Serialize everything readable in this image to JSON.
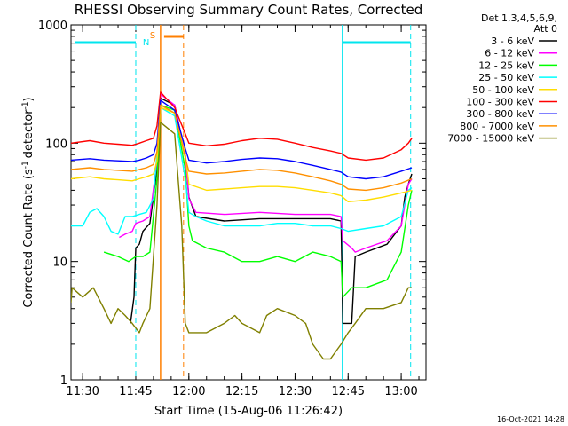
{
  "chart_data": {
    "type": "line",
    "title": "RHESSI Observing Summary Count Rates, Corrected",
    "xlabel": "Start Time (15-Aug-06 11:26:42)",
    "ylabel": "Corrected Count Rate (s",
    "ylabel_unit": "detector",
    "ylabel_sup_a": "-1",
    "ylabel_sup_b": "-1",
    "ylabel_close": ")",
    "yscale": "log",
    "ylim": [
      1,
      1000
    ],
    "xlim": [
      "11:26:42",
      "13:07:00"
    ],
    "x_ticks": [
      "11:30",
      "11:45",
      "12:00",
      "12:15",
      "12:30",
      "12:45",
      "13:00"
    ],
    "y_ticks": [
      "1",
      "10",
      "100",
      "1000"
    ],
    "legend_header": [
      "Det 1,3,4,5,6,9,",
      "Att 0"
    ],
    "legend_position": "right",
    "footer": "16-Oct-2021 14:28",
    "markers": {
      "saa_lines": [
        "11:45:00",
        "13:02:40"
      ],
      "night_line": "12:43:20",
      "flare_line": "11:52:00",
      "flare_end_dashed": "11:58:30",
      "labels": {
        "S": "S",
        "N": "N"
      },
      "colors": {
        "cyan": "#00e5ee",
        "orange": "#ff7f00"
      }
    },
    "series": [
      {
        "name": "3 - 6 keV",
        "color": "#000000",
        "points": [
          [
            "11:43:30",
            3
          ],
          [
            "11:44:30",
            5
          ],
          [
            "11:45:00",
            13
          ],
          [
            "11:46:00",
            14
          ],
          [
            "11:47:00",
            18
          ],
          [
            "11:49:00",
            21
          ],
          [
            "11:51:00",
            60
          ],
          [
            "11:51:40",
            150
          ],
          [
            "11:52:00",
            240
          ],
          [
            "11:56:00",
            210
          ],
          [
            "11:59:00",
            80
          ],
          [
            "12:00:00",
            35
          ],
          [
            "12:02:00",
            24
          ],
          [
            "12:10:00",
            22
          ],
          [
            "12:20:00",
            23
          ],
          [
            "12:30:00",
            23
          ],
          [
            "12:40:00",
            23
          ],
          [
            "12:43:00",
            22
          ],
          [
            "12:43:30",
            3
          ],
          [
            "12:46:00",
            3
          ],
          [
            "12:47:00",
            11
          ],
          [
            "12:50:00",
            12
          ],
          [
            "12:56:00",
            14
          ],
          [
            "13:00:00",
            20
          ],
          [
            "13:01:00",
            35
          ],
          [
            "13:02:00",
            45
          ],
          [
            "13:03:00",
            55
          ]
        ]
      },
      {
        "name": "6 - 12 keV",
        "color": "#ff00ff",
        "points": [
          [
            "11:40:20",
            16
          ],
          [
            "11:42:00",
            17
          ],
          [
            "11:44:00",
            18
          ],
          [
            "11:45:00",
            21
          ],
          [
            "11:47:00",
            22
          ],
          [
            "11:49:00",
            24
          ],
          [
            "11:51:00",
            70
          ],
          [
            "11:52:00",
            260
          ],
          [
            "11:56:00",
            210
          ],
          [
            "11:59:00",
            80
          ],
          [
            "12:00:00",
            34
          ],
          [
            "12:02:00",
            26
          ],
          [
            "12:10:00",
            25
          ],
          [
            "12:20:00",
            26
          ],
          [
            "12:30:00",
            25
          ],
          [
            "12:40:00",
            25
          ],
          [
            "12:43:00",
            24
          ],
          [
            "12:43:30",
            15
          ],
          [
            "12:46:00",
            13
          ],
          [
            "12:47:00",
            12
          ],
          [
            "12:50:00",
            13
          ],
          [
            "12:56:00",
            15
          ],
          [
            "13:00:00",
            20
          ],
          [
            "13:02:00",
            45
          ],
          [
            "13:03:00",
            50
          ]
        ]
      },
      {
        "name": "12 - 25 keV",
        "color": "#00ff00",
        "points": [
          [
            "11:36:00",
            12
          ],
          [
            "11:40:00",
            11
          ],
          [
            "11:43:00",
            10
          ],
          [
            "11:45:00",
            11
          ],
          [
            "11:47:00",
            11
          ],
          [
            "11:49:00",
            12
          ],
          [
            "11:51:00",
            50
          ],
          [
            "11:52:00",
            210
          ],
          [
            "11:56:00",
            190
          ],
          [
            "11:59:00",
            60
          ],
          [
            "12:00:00",
            20
          ],
          [
            "12:01:00",
            15
          ],
          [
            "12:05:00",
            13
          ],
          [
            "12:10:00",
            12
          ],
          [
            "12:15:00",
            10
          ],
          [
            "12:20:00",
            10
          ],
          [
            "12:25:00",
            11
          ],
          [
            "12:30:00",
            10
          ],
          [
            "12:35:00",
            12
          ],
          [
            "12:40:00",
            11
          ],
          [
            "12:43:00",
            10
          ],
          [
            "12:43:30",
            5
          ],
          [
            "12:46:00",
            6
          ],
          [
            "12:50:00",
            6
          ],
          [
            "12:56:00",
            7
          ],
          [
            "13:00:00",
            12
          ],
          [
            "13:02:00",
            30
          ],
          [
            "13:03:00",
            40
          ]
        ]
      },
      {
        "name": "25 - 50 keV",
        "color": "#00ffff",
        "points": [
          [
            "11:26:42",
            20
          ],
          [
            "11:30:00",
            20
          ],
          [
            "11:32:00",
            26
          ],
          [
            "11:34:00",
            28
          ],
          [
            "11:36:00",
            24
          ],
          [
            "11:38:00",
            18
          ],
          [
            "11:40:00",
            17
          ],
          [
            "11:42:00",
            24
          ],
          [
            "11:44:00",
            24
          ],
          [
            "11:46:00",
            25
          ],
          [
            "11:48:00",
            26
          ],
          [
            "11:50:00",
            34
          ],
          [
            "11:52:00",
            200
          ],
          [
            "11:56:00",
            170
          ],
          [
            "11:59:00",
            50
          ],
          [
            "12:00:00",
            26
          ],
          [
            "12:02:00",
            24
          ],
          [
            "12:05:00",
            22
          ],
          [
            "12:10:00",
            20
          ],
          [
            "12:15:00",
            20
          ],
          [
            "12:20:00",
            20
          ],
          [
            "12:25:00",
            21
          ],
          [
            "12:30:00",
            21
          ],
          [
            "12:35:00",
            20
          ],
          [
            "12:40:00",
            20
          ],
          [
            "12:43:00",
            19
          ],
          [
            "12:45:00",
            18
          ],
          [
            "12:50:00",
            19
          ],
          [
            "12:55:00",
            20
          ],
          [
            "13:00:00",
            24
          ],
          [
            "13:02:00",
            40
          ],
          [
            "13:03:00",
            42
          ]
        ]
      },
      {
        "name": "50 - 100 keV",
        "color": "#ffdd00",
        "points": [
          [
            "11:26:42",
            50
          ],
          [
            "11:32:00",
            52
          ],
          [
            "11:36:00",
            50
          ],
          [
            "11:40:00",
            49
          ],
          [
            "11:44:00",
            48
          ],
          [
            "11:46:00",
            50
          ],
          [
            "11:48:00",
            52
          ],
          [
            "11:50:00",
            55
          ],
          [
            "11:51:00",
            70
          ],
          [
            "11:52:00",
            200
          ],
          [
            "11:56:00",
            180
          ],
          [
            "11:59:00",
            80
          ],
          [
            "12:00:00",
            45
          ],
          [
            "12:05:00",
            40
          ],
          [
            "12:10:00",
            41
          ],
          [
            "12:15:00",
            42
          ],
          [
            "12:20:00",
            43
          ],
          [
            "12:25:00",
            43
          ],
          [
            "12:30:00",
            42
          ],
          [
            "12:35:00",
            40
          ],
          [
            "12:40:00",
            38
          ],
          [
            "12:43:00",
            36
          ],
          [
            "12:45:00",
            32
          ],
          [
            "12:50:00",
            33
          ],
          [
            "12:55:00",
            35
          ],
          [
            "13:00:00",
            38
          ],
          [
            "13:03:00",
            40
          ]
        ]
      },
      {
        "name": "100 - 300 keV",
        "color": "#ff0000",
        "points": [
          [
            "11:26:42",
            100
          ],
          [
            "11:32:00",
            105
          ],
          [
            "11:36:00",
            100
          ],
          [
            "11:40:00",
            98
          ],
          [
            "11:44:00",
            96
          ],
          [
            "11:46:00",
            100
          ],
          [
            "11:48:00",
            105
          ],
          [
            "11:50:00",
            110
          ],
          [
            "11:51:00",
            140
          ],
          [
            "11:52:00",
            270
          ],
          [
            "11:56:00",
            200
          ],
          [
            "11:59:00",
            120
          ],
          [
            "12:00:00",
            100
          ],
          [
            "12:05:00",
            95
          ],
          [
            "12:10:00",
            98
          ],
          [
            "12:15:00",
            105
          ],
          [
            "12:20:00",
            110
          ],
          [
            "12:25:00",
            108
          ],
          [
            "12:30:00",
            100
          ],
          [
            "12:35:00",
            92
          ],
          [
            "12:40:00",
            86
          ],
          [
            "12:43:00",
            82
          ],
          [
            "12:45:00",
            75
          ],
          [
            "12:50:00",
            72
          ],
          [
            "12:55:00",
            75
          ],
          [
            "13:00:00",
            88
          ],
          [
            "13:02:00",
            100
          ],
          [
            "13:03:00",
            110
          ]
        ]
      },
      {
        "name": "300 - 800 keV",
        "color": "#0000ff",
        "points": [
          [
            "11:26:42",
            72
          ],
          [
            "11:32:00",
            74
          ],
          [
            "11:36:00",
            72
          ],
          [
            "11:40:00",
            71
          ],
          [
            "11:44:00",
            70
          ],
          [
            "11:46:00",
            72
          ],
          [
            "11:48:00",
            75
          ],
          [
            "11:50:00",
            80
          ],
          [
            "11:51:00",
            100
          ],
          [
            "11:52:00",
            230
          ],
          [
            "11:56:00",
            190
          ],
          [
            "11:59:00",
            90
          ],
          [
            "12:00:00",
            72
          ],
          [
            "12:05:00",
            68
          ],
          [
            "12:10:00",
            70
          ],
          [
            "12:15:00",
            73
          ],
          [
            "12:20:00",
            75
          ],
          [
            "12:25:00",
            74
          ],
          [
            "12:30:00",
            70
          ],
          [
            "12:35:00",
            65
          ],
          [
            "12:40:00",
            60
          ],
          [
            "12:43:00",
            57
          ],
          [
            "12:45:00",
            52
          ],
          [
            "12:50:00",
            50
          ],
          [
            "12:55:00",
            52
          ],
          [
            "13:00:00",
            58
          ],
          [
            "13:03:00",
            62
          ]
        ]
      },
      {
        "name": "800 - 7000 keV",
        "color": "#ff9000",
        "points": [
          [
            "11:26:42",
            60
          ],
          [
            "11:32:00",
            62
          ],
          [
            "11:36:00",
            60
          ],
          [
            "11:40:00",
            59
          ],
          [
            "11:44:00",
            58
          ],
          [
            "11:46:00",
            60
          ],
          [
            "11:48:00",
            62
          ],
          [
            "11:50:00",
            66
          ],
          [
            "11:51:00",
            85
          ],
          [
            "11:52:00",
            210
          ],
          [
            "11:56:00",
            180
          ],
          [
            "11:59:00",
            75
          ],
          [
            "12:00:00",
            58
          ],
          [
            "12:05:00",
            55
          ],
          [
            "12:10:00",
            56
          ],
          [
            "12:15:00",
            58
          ],
          [
            "12:20:00",
            60
          ],
          [
            "12:25:00",
            59
          ],
          [
            "12:30:00",
            56
          ],
          [
            "12:35:00",
            52
          ],
          [
            "12:40:00",
            48
          ],
          [
            "12:43:00",
            45
          ],
          [
            "12:45:00",
            41
          ],
          [
            "12:50:00",
            40
          ],
          [
            "12:55:00",
            42
          ],
          [
            "13:00:00",
            46
          ],
          [
            "13:03:00",
            50
          ]
        ]
      },
      {
        "name": "7000 - 15000 keV",
        "color": "#808000",
        "points": [
          [
            "11:26:42",
            4.5
          ],
          [
            "11:27:00",
            6
          ],
          [
            "11:30:00",
            5
          ],
          [
            "11:33:00",
            6
          ],
          [
            "11:36:00",
            4
          ],
          [
            "11:38:00",
            3
          ],
          [
            "11:40:00",
            4
          ],
          [
            "11:42:00",
            3.5
          ],
          [
            "11:44:00",
            3
          ],
          [
            "11:46:00",
            2.5
          ],
          [
            "11:47:00",
            3
          ],
          [
            "11:49:00",
            4
          ],
          [
            "11:51:00",
            30
          ],
          [
            "11:52:00",
            150
          ],
          [
            "11:56:00",
            120
          ],
          [
            "11:58:00",
            20
          ],
          [
            "11:59:00",
            3
          ],
          [
            "12:00:00",
            2.5
          ],
          [
            "12:05:00",
            2.5
          ],
          [
            "12:10:00",
            3
          ],
          [
            "12:13:00",
            3.5
          ],
          [
            "12:15:00",
            3
          ],
          [
            "12:20:00",
            2.5
          ],
          [
            "12:22:00",
            3.5
          ],
          [
            "12:25:00",
            4
          ],
          [
            "12:30:00",
            3.5
          ],
          [
            "12:33:00",
            3
          ],
          [
            "12:35:00",
            2
          ],
          [
            "12:38:00",
            1.5
          ],
          [
            "12:40:00",
            1.5
          ],
          [
            "12:43:00",
            2
          ],
          [
            "12:45:00",
            2.5
          ],
          [
            "12:47:00",
            3
          ],
          [
            "12:50:00",
            4
          ],
          [
            "12:55:00",
            4
          ],
          [
            "13:00:00",
            4.5
          ],
          [
            "13:02:00",
            6
          ],
          [
            "13:03:00",
            6
          ]
        ]
      }
    ]
  }
}
